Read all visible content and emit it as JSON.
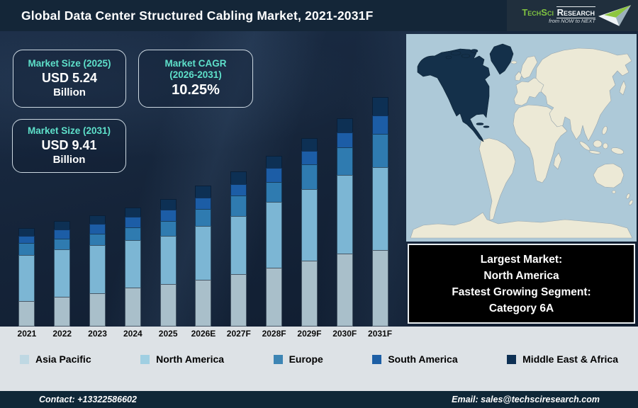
{
  "header": {
    "title": "Global Data Center Structured Cabling Market, 2021-2031F",
    "logo": {
      "brand_primary": "TechSci",
      "brand_secondary": "Research",
      "tagline": "from NOW to NEXT",
      "brand_green": "#7fc241"
    }
  },
  "info_boxes": {
    "market_size_2025": {
      "title": "Market Size (2025)",
      "value": "USD 5.24",
      "unit": "Billion"
    },
    "market_cagr": {
      "title": "Market CAGR",
      "subtitle": "(2026-2031)",
      "value": "10.25%"
    },
    "market_size_2031": {
      "title": "Market Size (2031)",
      "value": "USD 9.41",
      "unit": "Billion"
    }
  },
  "chart_data": {
    "type": "bar",
    "stacked": true,
    "title": "Global Data Center Structured Cabling Market, 2021-2031F",
    "unit": "USD Billion",
    "y_axis_visible": false,
    "grid": false,
    "legend_position": "bottom",
    "categories": [
      "2021",
      "2022",
      "2023",
      "2024",
      "2025",
      "2026E",
      "2027F",
      "2028F",
      "2029F",
      "2030F",
      "2031F"
    ],
    "series": [
      {
        "name": "Asia Pacific",
        "color": "#a9bfca",
        "legend_color": "#bfd8e3",
        "values": [
          1.05,
          1.22,
          1.38,
          1.6,
          1.75,
          1.92,
          2.15,
          2.42,
          2.71,
          3.0,
          3.15
        ]
      },
      {
        "name": "North America",
        "color": "#7cb6d4",
        "legend_color": "#a0cfe2",
        "values": [
          1.9,
          1.95,
          1.95,
          1.95,
          1.97,
          2.21,
          2.38,
          2.69,
          2.94,
          3.21,
          3.39
        ]
      },
      {
        "name": "Europe",
        "color": "#2f7bb0",
        "legend_color": "#3d85b4",
        "values": [
          0.48,
          0.44,
          0.49,
          0.53,
          0.62,
          0.69,
          0.85,
          0.83,
          1.02,
          1.14,
          1.36
        ]
      },
      {
        "name": "South America",
        "color": "#1c5da6",
        "legend_color": "#1d5fa5",
        "values": [
          0.3,
          0.37,
          0.39,
          0.43,
          0.47,
          0.47,
          0.46,
          0.57,
          0.54,
          0.61,
          0.77
        ]
      },
      {
        "name": "Middle East & Africa",
        "color": "#0d3054",
        "legend_color": "#0d3054",
        "values": [
          0.32,
          0.35,
          0.35,
          0.37,
          0.43,
          0.49,
          0.52,
          0.5,
          0.52,
          0.58,
          0.74
        ]
      }
    ],
    "totals_annotated": {
      "2025": 5.24,
      "2031F": 9.41
    },
    "cagr_2026_2031_pct": 10.25
  },
  "map": {
    "highlighted_region": "North America",
    "ocean_color": "#adc9d8",
    "land_color": "#ece9d6",
    "highlight_color": "#14304a"
  },
  "note_box": {
    "line1": "Largest Market:",
    "line2": "North America",
    "line3": "Fastest Growing Segment:",
    "line4": "Category 6A"
  },
  "footer": {
    "contact": "Contact: +13322586602",
    "email": "Email: sales@techsciresearch.com"
  }
}
